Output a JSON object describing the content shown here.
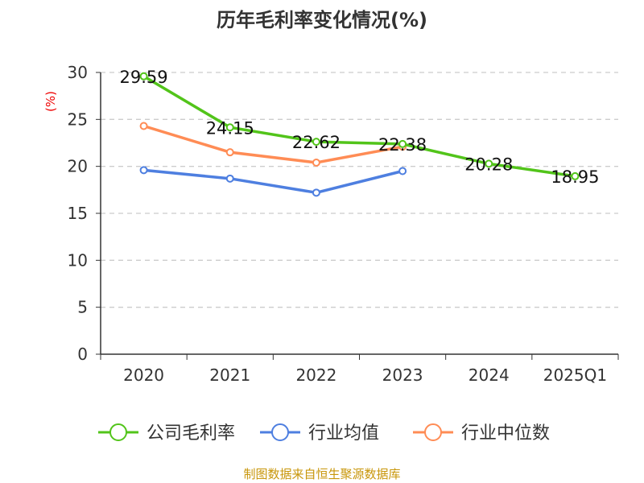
{
  "chart_data": {
    "type": "line",
    "title": "历年毛利率变化情况(%)",
    "ylabel": "(%)",
    "xlabel": "",
    "categories": [
      "2020",
      "2021",
      "2022",
      "2023",
      "2024",
      "2025Q1"
    ],
    "ylim": [
      0,
      30
    ],
    "yticks": [
      "0",
      "5",
      "10",
      "15",
      "20",
      "25",
      "30"
    ],
    "grid": true,
    "legend_position": "bottom",
    "series": [
      {
        "name": "公司毛利率",
        "color": "#52c41a",
        "values": [
          29.59,
          24.15,
          22.62,
          22.38,
          20.28,
          18.95
        ],
        "labels": [
          "29.59",
          "24.15",
          "22.62",
          "22.38",
          "20.28",
          "18.95"
        ]
      },
      {
        "name": "行业均值",
        "color": "#4e7fe0",
        "values": [
          19.6,
          18.7,
          17.2,
          19.5,
          null,
          null
        ]
      },
      {
        "name": "行业中位数",
        "color": "#ff8c55",
        "values": [
          24.3,
          21.5,
          20.4,
          22.1,
          null,
          null
        ]
      }
    ]
  },
  "footer": "制图数据来自恒生聚源数据库"
}
